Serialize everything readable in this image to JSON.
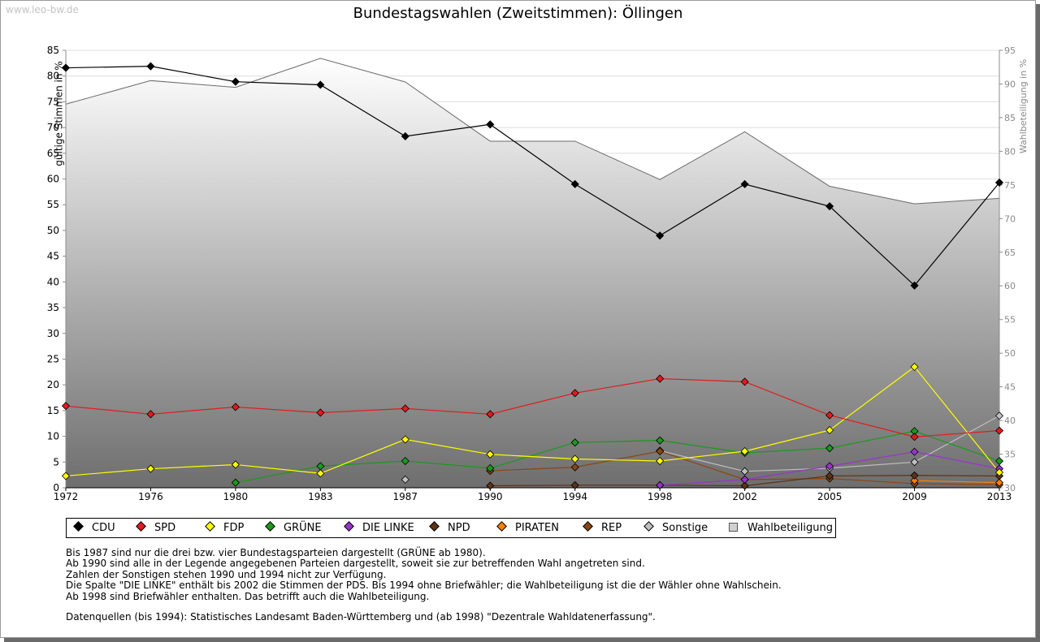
{
  "watermark": "www.leo-bw.de",
  "chart_data": {
    "type": "line",
    "title": "Bundestagswahlen (Zweitstimmen): Öllingen",
    "ylabel": "gültige Stimmen in %",
    "y2label": "Wahlbeteiligung in %",
    "x": [
      "1972",
      "1976",
      "1980",
      "1983",
      "1987",
      "1990",
      "1994",
      "1998",
      "2002",
      "2005",
      "2009",
      "2013"
    ],
    "ylim": [
      0,
      85
    ],
    "y2lim": [
      30,
      95
    ],
    "yticks": [
      "0",
      "5",
      "10",
      "15",
      "20",
      "25",
      "30",
      "35",
      "40",
      "45",
      "50",
      "55",
      "60",
      "65",
      "70",
      "75",
      "80",
      "85"
    ],
    "y2ticks": [
      "30",
      "35",
      "40",
      "45",
      "50",
      "55",
      "60",
      "65",
      "70",
      "75",
      "80",
      "85",
      "90",
      "95"
    ],
    "grid": true,
    "series": [
      {
        "name": "CDU",
        "color": "#000000",
        "values": [
          81.6,
          81.9,
          78.9,
          78.3,
          68.3,
          70.6,
          59.0,
          49.0,
          59.0,
          54.7,
          39.3,
          59.3
        ]
      },
      {
        "name": "SPD",
        "color": "#e31a1c",
        "values": [
          15.9,
          14.3,
          15.7,
          14.6,
          15.4,
          14.3,
          18.4,
          21.2,
          20.6,
          14.1,
          9.9,
          11.1
        ]
      },
      {
        "name": "FDP",
        "color": "#ffff00",
        "values": [
          2.3,
          3.7,
          4.5,
          2.8,
          9.4,
          6.5,
          5.6,
          5.2,
          7.1,
          11.2,
          23.5,
          3.0
        ]
      },
      {
        "name": "GRÜNE",
        "color": "#1a9a1a",
        "values": [
          null,
          null,
          1.0,
          4.2,
          5.2,
          3.8,
          8.8,
          9.2,
          6.8,
          7.7,
          11.0,
          5.2
        ]
      },
      {
        "name": "DIE LINKE",
        "color": "#9933cc",
        "values": [
          null,
          null,
          null,
          null,
          null,
          null,
          null,
          0.5,
          1.6,
          4.2,
          7.0,
          3.7
        ]
      },
      {
        "name": "NPD",
        "color": "#5c3317",
        "values": [
          null,
          null,
          null,
          null,
          null,
          0.4,
          0.5,
          0.5,
          0.4,
          2.3,
          2.4,
          2.3
        ]
      },
      {
        "name": "PIRATEN",
        "color": "#ff7f00",
        "values": [
          null,
          null,
          null,
          null,
          null,
          null,
          null,
          null,
          null,
          null,
          1.4,
          1.0
        ]
      },
      {
        "name": "REP",
        "color": "#8b4513",
        "values": [
          null,
          null,
          null,
          null,
          null,
          3.3,
          4.0,
          7.1,
          1.6,
          1.8,
          0.8,
          0.6
        ]
      },
      {
        "name": "Sonstige",
        "color": "#bfbfbf",
        "values": [
          null,
          null,
          null,
          null,
          1.6,
          null,
          null,
          7.2,
          3.2,
          3.8,
          5.0,
          14.0
        ]
      },
      {
        "name": "Wahlbeteiligung",
        "color": "#c8c8c8",
        "axis": "right",
        "type": "area",
        "values": [
          87.0,
          90.5,
          89.5,
          93.8,
          90.3,
          81.5,
          81.5,
          75.8,
          82.9,
          74.8,
          72.2,
          73.0
        ]
      }
    ],
    "legend": {
      "position": "bottom",
      "items": [
        "CDU",
        "SPD",
        "FDP",
        "GRÜNE",
        "DIE LINKE",
        "NPD",
        "PIRATEN",
        "REP",
        "Sonstige",
        "Wahlbeteiligung"
      ]
    }
  },
  "notes": [
    "Bis 1987 sind nur die drei bzw. vier Bundestagsparteien dargestellt (GRÜNE ab 1980).",
    "Ab 1990 sind alle in der Legende angegebenen Parteien dargestellt, soweit sie zur betreffenden Wahl angetreten sind.",
    "Zahlen der Sonstigen stehen 1990 und 1994 nicht zur Verfügung.",
    "Die Spalte \"DIE LINKE\" enthält bis 2002 die Stimmen der PDS. Bis 1994 ohne Briefwähler; die Wahlbeteiligung ist die der Wähler ohne Wahlschein.",
    "Ab 1998 sind Briefwähler enthalten. Das betrifft auch die Wahlbeteiligung."
  ],
  "source": "Datenquellen (bis 1994): Statistisches Landesamt Baden-Württemberg und (ab 1998) \"Dezentrale Wahldatenerfassung\"."
}
